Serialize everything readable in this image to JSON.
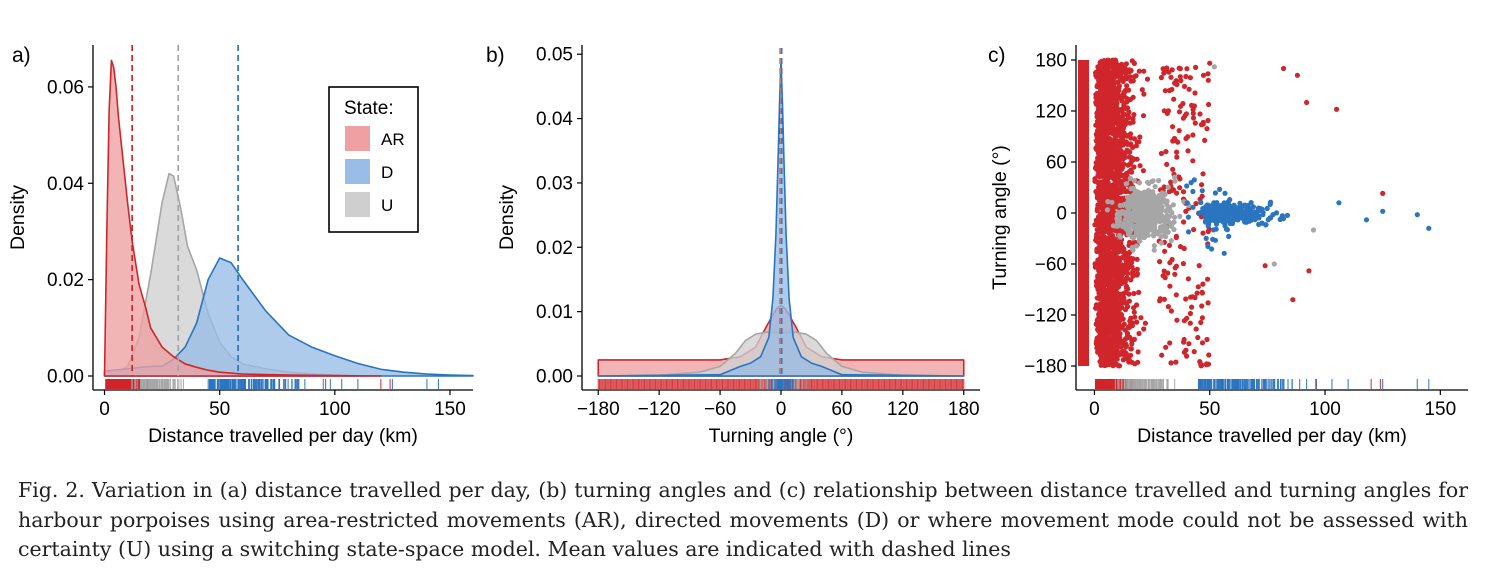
{
  "colors": {
    "AR": "#d0262b",
    "D": "#2a74c0",
    "U": "#a6a6a6",
    "AR_fill": "#eea0a2",
    "D_fill": "#99bde6",
    "U_fill": "#cfcfcf"
  },
  "caption": "Fig. 2. Variation in (a) distance travelled per day, (b) turning angles and (c) relationship between distance travelled and turning angles for harbour porpoises using area-restricted movements (AR), directed movements (D) or where movement mode could not be assessed with certainty (U) using a switching state-space model. Mean values are indicated with dashed lines",
  "chart_data": [
    {
      "panel_label": "a)",
      "type": "area",
      "xlabel": "Distance travelled per day (km)",
      "ylabel": "Density",
      "xlim": [
        -5,
        160
      ],
      "ylim": [
        0,
        0.066
      ],
      "xticks": [
        0,
        50,
        100,
        150
      ],
      "yticks": [
        0.0,
        0.02,
        0.04,
        0.06
      ],
      "ytick_labels": [
        "0.00",
        "0.02",
        "0.04",
        "0.06"
      ],
      "legend": {
        "title": "State:",
        "entries": [
          "AR",
          "D",
          "U"
        ],
        "placement": "top-right"
      },
      "grid": false,
      "series": [
        {
          "name": "U",
          "x": [
            0,
            5,
            10,
            15,
            20,
            25,
            28,
            30,
            33,
            36,
            40,
            45,
            50,
            55,
            60,
            70,
            80,
            90,
            100,
            110
          ],
          "y": [
            0.0,
            0.0005,
            0.002,
            0.008,
            0.021,
            0.036,
            0.042,
            0.0415,
            0.035,
            0.027,
            0.022,
            0.013,
            0.007,
            0.004,
            0.0025,
            0.0015,
            0.0008,
            0.0004,
            0.0002,
            0.0
          ]
        },
        {
          "name": "D",
          "x": [
            0,
            10,
            20,
            25,
            30,
            35,
            40,
            45,
            50,
            55,
            60,
            70,
            80,
            90,
            100,
            110,
            120,
            130,
            140,
            150,
            160
          ],
          "y": [
            0.001,
            0.0015,
            0.002,
            0.002,
            0.0035,
            0.006,
            0.011,
            0.02,
            0.0245,
            0.0235,
            0.02,
            0.0135,
            0.0085,
            0.006,
            0.0042,
            0.0026,
            0.0014,
            0.0008,
            0.0004,
            0.0002,
            0.0001
          ]
        },
        {
          "name": "AR",
          "x": [
            0,
            1,
            2,
            3,
            4,
            5,
            6,
            8,
            10,
            12,
            15,
            18,
            20,
            25,
            30,
            35,
            40,
            45,
            50,
            60,
            80,
            100,
            120
          ],
          "y": [
            0.0,
            0.03,
            0.055,
            0.0655,
            0.064,
            0.06,
            0.054,
            0.045,
            0.036,
            0.028,
            0.019,
            0.014,
            0.01,
            0.006,
            0.004,
            0.0025,
            0.0018,
            0.0012,
            0.0008,
            0.0004,
            0.0002,
            0.0001,
            0.0
          ]
        }
      ],
      "means": {
        "AR": 12,
        "U": 32,
        "D": 58
      }
    },
    {
      "panel_label": "b)",
      "type": "area",
      "xlabel": "Turning angle (°)",
      "ylabel": "Density",
      "xlim": [
        -190,
        190
      ],
      "ylim": [
        0,
        0.0505
      ],
      "xticks": [
        -180,
        -120,
        -60,
        0,
        60,
        120,
        180
      ],
      "xtick_labels": [
        "−180",
        "−120",
        "−60",
        "0",
        "60",
        "120",
        "180"
      ],
      "yticks": [
        0.0,
        0.01,
        0.02,
        0.03,
        0.04,
        0.05
      ],
      "ytick_labels": [
        "0.00",
        "0.01",
        "0.02",
        "0.03",
        "0.04",
        "0.05"
      ],
      "grid": false,
      "series": [
        {
          "name": "AR",
          "x": [
            -180,
            -150,
            -120,
            -90,
            -60,
            -40,
            -25,
            -15,
            -8,
            -4,
            0,
            4,
            8,
            15,
            25,
            40,
            60,
            90,
            120,
            150,
            180
          ],
          "y": [
            0.0025,
            0.0025,
            0.0025,
            0.0025,
            0.0025,
            0.003,
            0.0045,
            0.0075,
            0.0095,
            0.0105,
            0.011,
            0.0105,
            0.0095,
            0.0075,
            0.0045,
            0.003,
            0.0025,
            0.0025,
            0.0025,
            0.0025,
            0.0025
          ]
        },
        {
          "name": "U",
          "x": [
            -180,
            -120,
            -80,
            -60,
            -45,
            -35,
            -25,
            -15,
            -8,
            0,
            8,
            15,
            25,
            35,
            45,
            60,
            80,
            120,
            180
          ],
          "y": [
            0.0,
            0.0001,
            0.0006,
            0.0015,
            0.0035,
            0.0055,
            0.0065,
            0.0068,
            0.0068,
            0.0067,
            0.0068,
            0.0068,
            0.0065,
            0.0055,
            0.0035,
            0.0015,
            0.0006,
            0.0001,
            0.0
          ]
        },
        {
          "name": "D",
          "x": [
            -180,
            -60,
            -40,
            -30,
            -20,
            -12,
            -8,
            -5,
            -3,
            -1.5,
            0,
            1.5,
            3,
            5,
            8,
            12,
            20,
            30,
            40,
            60,
            180
          ],
          "y": [
            0.0,
            0.0002,
            0.0015,
            0.002,
            0.003,
            0.006,
            0.012,
            0.022,
            0.033,
            0.042,
            0.049,
            0.042,
            0.033,
            0.022,
            0.012,
            0.006,
            0.003,
            0.002,
            0.0015,
            0.0002,
            0.0
          ]
        }
      ],
      "means": {
        "AR": 0,
        "U": 0,
        "D": 0
      }
    },
    {
      "panel_label": "c)",
      "type": "scatter",
      "xlabel": "Distance travelled per day (km)",
      "ylabel": "Turning angle (°)",
      "xlim": [
        -8,
        162
      ],
      "ylim": [
        -195,
        192
      ],
      "xticks": [
        0,
        50,
        100,
        150
      ],
      "yticks": [
        -180,
        -120,
        -60,
        0,
        60,
        120,
        180
      ],
      "ytick_labels": [
        "−180",
        "−120",
        "−60",
        "0",
        "60",
        "120",
        "180"
      ],
      "grid": false,
      "series": [
        {
          "name": "AR",
          "x_range": [
            0,
            45
          ],
          "y_range": [
            -180,
            180
          ],
          "outliers": [
            [
              125,
              23
            ],
            [
              93,
              -68
            ],
            [
              86,
              -102
            ],
            [
              82,
              170
            ],
            [
              88,
              162
            ],
            [
              92,
              130
            ],
            [
              105,
              122
            ],
            [
              74,
              -62
            ]
          ]
        },
        {
          "name": "U",
          "x_range": [
            10,
            60
          ],
          "y_range": [
            -75,
            75
          ],
          "outliers": [
            [
              52,
              172
            ],
            [
              95,
              -20
            ],
            [
              78,
              -60
            ]
          ]
        },
        {
          "name": "D",
          "x_range": [
            35,
            110
          ],
          "y_range": [
            -40,
            40
          ],
          "outliers": [
            [
              145,
              -18
            ],
            [
              140,
              -2
            ],
            [
              125,
              2
            ],
            [
              118,
              -8
            ],
            [
              106,
              12
            ]
          ]
        }
      ]
    }
  ]
}
